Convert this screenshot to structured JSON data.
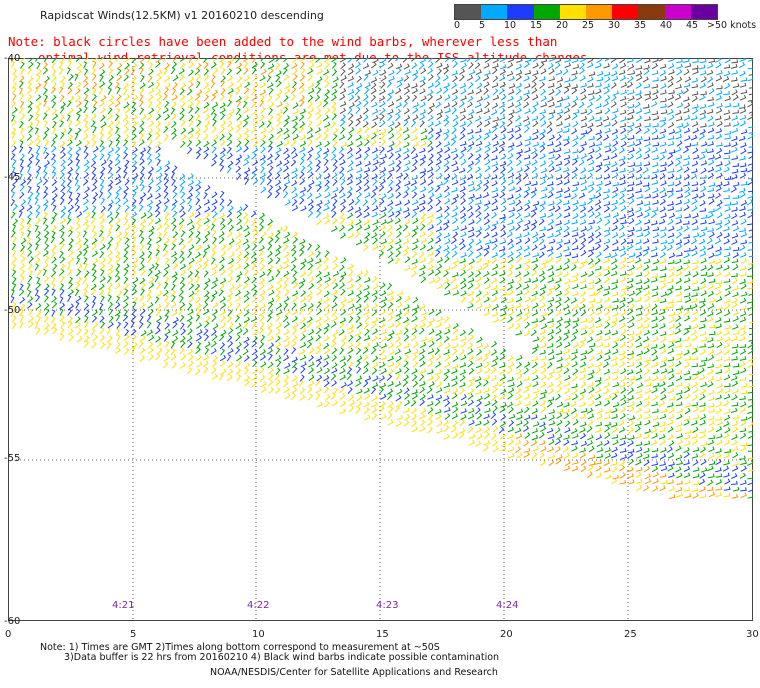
{
  "header": {
    "title": "Rapidscat Winds(12.5KM) v1 20160210 descending",
    "note_line1": "Note: black circles have been added to the wind barbs, wherever less than",
    "note_line2": "optimal wind retrieval conditions are met due to the ISS altitude changes."
  },
  "colorbar": {
    "colors": [
      "#555555",
      "#00aaff",
      "#1e3cff",
      "#00a800",
      "#ffe000",
      "#ff9900",
      "#ff0000",
      "#8b3a0f",
      "#cc00cc",
      "#6a00a0"
    ],
    "labels": [
      "0",
      "5",
      "10",
      "15",
      "20",
      "25",
      "30",
      "35",
      "40",
      "45",
      ">50 knots"
    ]
  },
  "axes": {
    "y_labels": [
      "-40",
      "-45",
      "-50",
      "-55",
      "-60"
    ],
    "x_labels": [
      "0",
      "5",
      "10",
      "15",
      "20",
      "25",
      "30"
    ],
    "time_labels": [
      "4:21",
      "4:22",
      "4:23",
      "4:24"
    ]
  },
  "footer": {
    "line1": "Note: 1) Times are GMT 2)Times along bottom correspond to measurement at ~50S",
    "line2": "3)Data buffer is 22 hrs from 20160210 4) Black wind barbs indicate possible contamination",
    "line3": "NOAA/NESDIS/Center for Satellite Applications and Research"
  }
}
